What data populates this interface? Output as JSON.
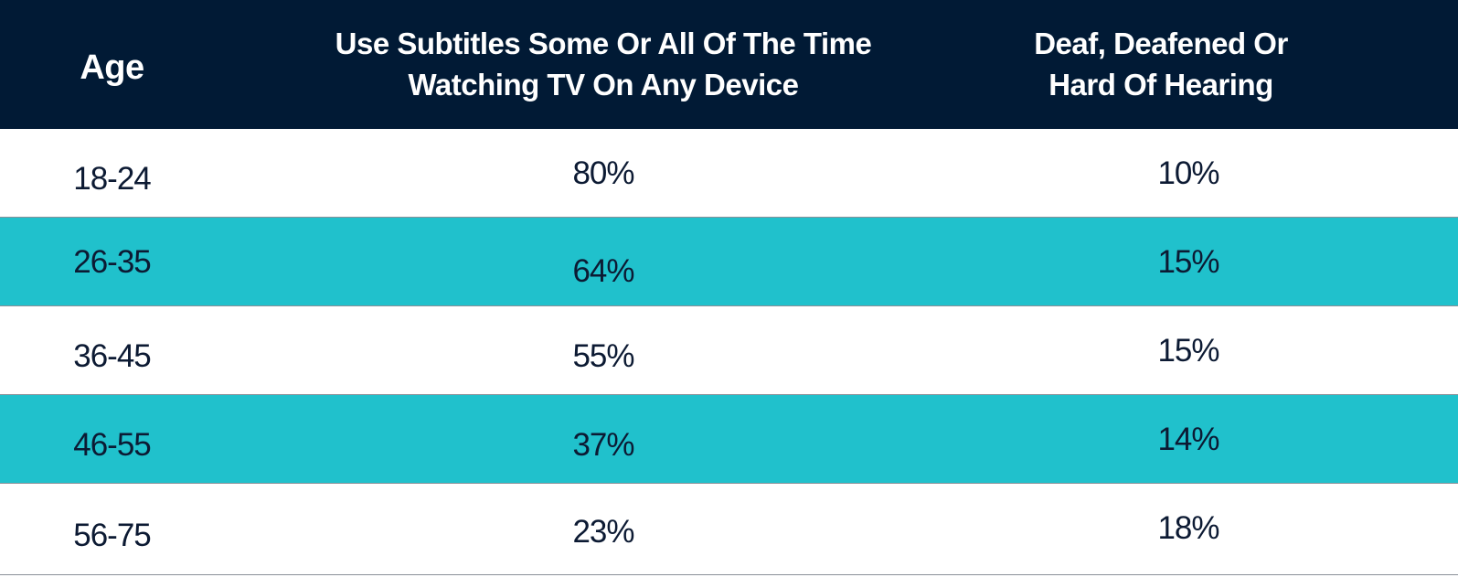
{
  "chart_data": {
    "type": "table",
    "columns": [
      "Age",
      "Use Subtitles Some Or All Of The Time Watching TV On Any Device",
      "Deaf, Deafened Or Hard Of Hearing"
    ],
    "header_lines": {
      "age": "Age",
      "subs_line1": "Use Subtitles Some Or All Of The Time",
      "subs_line2": "Watching TV On Any Device",
      "deaf_line1": "Deaf, Deafened Or",
      "deaf_line2": "Hard Of Hearing"
    },
    "rows": [
      {
        "age": "18-24",
        "subtitles": "80%",
        "deaf": "10%"
      },
      {
        "age": "26-35",
        "subtitles": "64%",
        "deaf": "15%"
      },
      {
        "age": "36-45",
        "subtitles": "55%",
        "deaf": "15%"
      },
      {
        "age": "46-55",
        "subtitles": "37%",
        "deaf": "14%"
      },
      {
        "age": "56-75",
        "subtitles": "23%",
        "deaf": "18%"
      }
    ]
  },
  "colors": {
    "header_bg": "#011a35",
    "header_text": "#ffffff",
    "band": "#20c1cc",
    "row_bg": "#ffffff",
    "cell_text": "#0c1a33"
  }
}
